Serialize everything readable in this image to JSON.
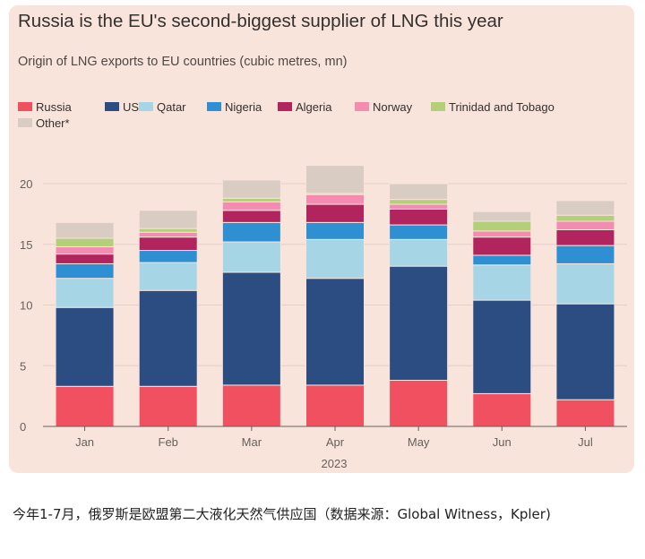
{
  "chart_data": {
    "type": "bar",
    "stacked": true,
    "title": "Russia is the EU's second-biggest supplier of LNG this year",
    "subtitle": "Origin of LNG exports to EU countries (cubic metres, mn)",
    "xlabel": "2023",
    "ylabel": "",
    "ylim": [
      0,
      22
    ],
    "yticks": [
      0,
      5,
      10,
      15,
      20
    ],
    "categories": [
      "Jan",
      "Feb",
      "Mar",
      "Apr",
      "May",
      "Jun",
      "Jul"
    ],
    "series": [
      {
        "name": "Russia",
        "color": "#f0505f",
        "values": [
          3.3,
          3.3,
          3.4,
          3.4,
          3.8,
          2.7,
          2.2
        ]
      },
      {
        "name": "US",
        "color": "#2b4d82",
        "values": [
          6.5,
          7.9,
          9.3,
          8.8,
          9.4,
          7.7,
          7.9
        ]
      },
      {
        "name": "Qatar",
        "color": "#a6d6e6",
        "values": [
          2.4,
          2.3,
          2.5,
          3.2,
          2.2,
          2.9,
          3.3
        ]
      },
      {
        "name": "Nigeria",
        "color": "#2f8fd3",
        "values": [
          1.2,
          1.0,
          1.6,
          1.4,
          1.2,
          0.8,
          1.5
        ]
      },
      {
        "name": "Algeria",
        "color": "#b2245e",
        "values": [
          0.8,
          1.1,
          1.0,
          1.5,
          1.3,
          1.5,
          1.3
        ]
      },
      {
        "name": "Norway",
        "color": "#f38cb0",
        "values": [
          0.6,
          0.4,
          0.7,
          0.8,
          0.4,
          0.5,
          0.7
        ]
      },
      {
        "name": "Trinidad and Tobago",
        "color": "#b3cf78",
        "values": [
          0.7,
          0.3,
          0.3,
          0.1,
          0.4,
          0.8,
          0.5
        ]
      },
      {
        "name": "Other*",
        "color": "#d9ccc3",
        "values": [
          1.3,
          1.5,
          1.5,
          2.3,
          1.3,
          0.8,
          1.2
        ]
      }
    ]
  },
  "caption": "今年1-7月，俄罗斯是欧盟第二大液化天然气供应国（数据来源：Global Witness，Kpler)"
}
